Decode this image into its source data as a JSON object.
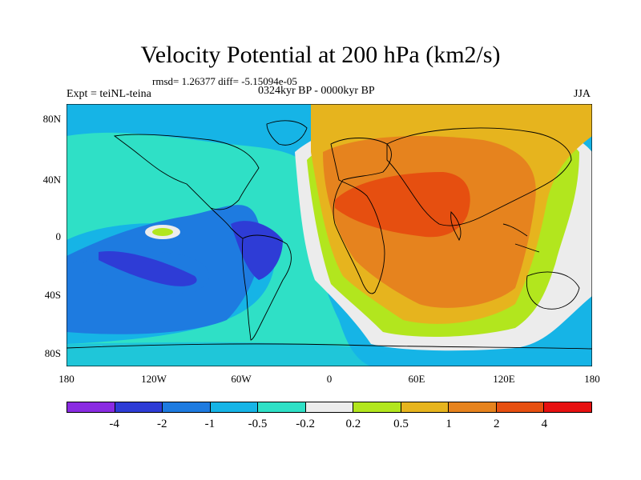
{
  "title": "Velocity Potential at 200 hPa (km2/s)",
  "stats": "rmsd= 1.26377 diff= -5.15094e-05",
  "expt": "Expt = teiNL-teina",
  "period": "0324kyr BP - 0000kyr BP",
  "season": "JJA",
  "lat_ticks": [
    "80N",
    "40N",
    "0",
    "40S",
    "80S"
  ],
  "lon_ticks": [
    "180",
    "120W",
    "60W",
    "0",
    "60E",
    "120E",
    "180"
  ],
  "colorbar": {
    "colors": [
      "#8a2be2",
      "#2e3cd6",
      "#1e7be0",
      "#16b4e6",
      "#2fe0c6",
      "#ececec",
      "#b2e61e",
      "#e6b41e",
      "#e6831e",
      "#e64f10",
      "#e61010"
    ],
    "labels": [
      "-4",
      "-2",
      "-1",
      "-0.5",
      "-0.2",
      "0.2",
      "0.5",
      "1",
      "2",
      "4"
    ]
  },
  "colors": {
    "ocean_base": "#16b4e6",
    "land_line": "#000000"
  }
}
